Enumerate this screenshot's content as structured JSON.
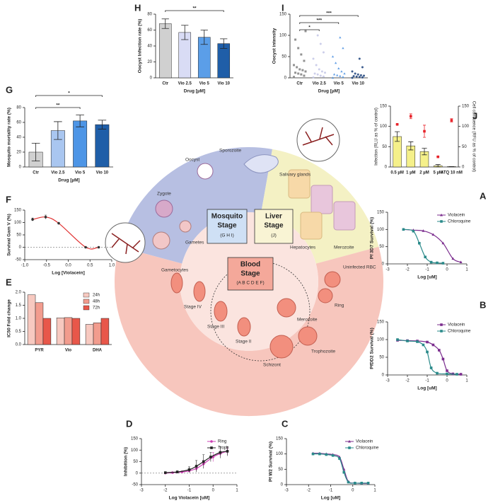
{
  "chart_data": [
    {
      "panel": "H",
      "type": "bar",
      "ylabel": "Oocyst Infection rate (%)",
      "xlabel": "Drug [µM]",
      "categories": [
        "Ctr",
        "Vio 2.5",
        "Vio 5",
        "Vio 10"
      ],
      "values": [
        68,
        57,
        51,
        43
      ],
      "errors": [
        6,
        9,
        9,
        6
      ],
      "colors": [
        "#d0d0d0",
        "#d9dcf5",
        "#5b9ee8",
        "#1f5ea8"
      ],
      "ylim": [
        0,
        80
      ],
      "yticks": [
        0,
        20,
        40,
        60,
        80
      ],
      "significance": [
        {
          "label": "**",
          "between": [
            "Ctr",
            "Vio 10"
          ]
        }
      ]
    },
    {
      "panel": "I",
      "type": "strip",
      "ylabel": "Oocyst intensity",
      "xlabel": "Drug [µM]",
      "categories": [
        "Ctr",
        "Vio 2.5",
        "Vio 5",
        "Vio 10"
      ],
      "values": [
        [
          2,
          5,
          8,
          10,
          12,
          15,
          18,
          20,
          25,
          30,
          40,
          55,
          70,
          90,
          110
        ],
        [
          1,
          3,
          5,
          8,
          10,
          12,
          15,
          20,
          30,
          45,
          60,
          80,
          100
        ],
        [
          0,
          2,
          4,
          6,
          8,
          10,
          15,
          22,
          35,
          50,
          70,
          95
        ],
        [
          0,
          1,
          2,
          3,
          4,
          5,
          6,
          8,
          10,
          15,
          25,
          45
        ]
      ],
      "colors": [
        "#7f7f7f",
        "#c3c6e6",
        "#4a8fe0",
        "#1a3f7a"
      ],
      "markers": [
        "square",
        "circle",
        "triangle",
        "circle"
      ],
      "ylim": [
        0,
        150
      ],
      "yticks": [
        0,
        50,
        100,
        150
      ],
      "significance": [
        {
          "label": "*",
          "between": [
            "Ctr",
            "Vio 2.5"
          ]
        },
        {
          "label": "***",
          "between": [
            "Ctr",
            "Vio 5"
          ]
        },
        {
          "label": "***",
          "between": [
            "Ctr",
            "Vio 10"
          ]
        }
      ]
    },
    {
      "panel": "G",
      "type": "bar",
      "ylabel": "Mosquito mortality rate (%)",
      "xlabel": "Drug [µM]",
      "categories": [
        "Ctr",
        "Vio 2.5",
        "Vio 5",
        "Vio 10"
      ],
      "values": [
        20,
        49,
        62,
        57
      ],
      "errors": [
        12,
        12,
        8,
        6
      ],
      "colors": [
        "#d0d0d0",
        "#a9c6f0",
        "#4d95e6",
        "#1f5ea8"
      ],
      "ylim": [
        0,
        80
      ],
      "yticks": [
        0,
        20,
        40,
        60,
        80
      ],
      "significance": [
        {
          "label": "**",
          "between": [
            "Ctr",
            "Vio 5"
          ]
        },
        {
          "label": "*",
          "between": [
            "Ctr",
            "Vio 10"
          ]
        }
      ]
    },
    {
      "panel": "J",
      "type": "bar",
      "ylabel": "Infection (RLU as % of control)",
      "y2label": "Cell confluence (RFU as % of control)",
      "categories": [
        "0.5 µM",
        "1 µM",
        "2 µM",
        "5 µM",
        "ATQ 10 nM"
      ],
      "series": [
        {
          "color": "#f5f08a",
          "values": [
            75,
            52,
            38,
            3,
            1
          ],
          "errors": [
            12,
            10,
            8,
            3,
            0
          ]
        },
        {
          "axis": "y2",
          "marker": "square",
          "color": "#e8242b",
          "values": [
            105,
            125,
            88,
            25,
            115
          ],
          "errors": [
            0,
            6,
            15,
            0,
            4
          ]
        }
      ],
      "ylim": [
        0,
        150
      ],
      "yticks": [
        0,
        50,
        100,
        150
      ],
      "y2lim": [
        0,
        150
      ],
      "y2ticks": [
        0,
        50,
        100,
        150
      ]
    },
    {
      "panel": "F",
      "type": "line",
      "ylabel": "Survival Gam V (%)",
      "xlabel": "Log [Violacein]",
      "series": [
        {
          "color": "#e03030",
          "marker": "circle",
          "marker_color": "#333333",
          "x": [
            -0.82,
            -0.52,
            -0.22,
            0.4,
            0.7
          ],
          "values": [
            112,
            122,
            97,
            0,
            0
          ],
          "errors": [
            6,
            8,
            0,
            0,
            0
          ]
        }
      ],
      "xlim": [
        -1,
        1
      ],
      "xticks": [
        {
          "value": -1,
          "label": "-1.0"
        },
        -0.5,
        {
          "value": 0,
          "label": "0.0"
        },
        0.5,
        {
          "value": 1,
          "label": "1.0"
        }
      ],
      "ylim": [
        -50,
        150
      ],
      "yticks": [
        -50,
        0,
        50,
        100,
        150
      ],
      "zero_line": true
    },
    {
      "panel": "E",
      "type": "bar",
      "ylabel": "IC50 Fold change",
      "categories": [
        "PYR",
        "Vio",
        "DHA"
      ],
      "series": [
        {
          "name": "24h",
          "color": "#f7c9c0",
          "values": [
            1.9,
            1.02,
            0.77
          ]
        },
        {
          "name": "48h",
          "color": "#f29c8e",
          "values": [
            1.6,
            1.03,
            0.83
          ]
        },
        {
          "name": "72h",
          "color": "#e8574a",
          "values": [
            1.0,
            1.0,
            1.0
          ]
        }
      ],
      "ylim": [
        0,
        2
      ],
      "yticks": [
        {
          "value": 0,
          "label": "0.0"
        },
        0.5,
        {
          "value": 1,
          "label": "1.0"
        },
        1.5,
        {
          "value": 2,
          "label": "2.0"
        }
      ]
    },
    {
      "panel": "A",
      "type": "line",
      "ylabel": "Pf 3D7 Survival (%)",
      "xlabel": "Log [uM]",
      "series": [
        {
          "name": "Violacein",
          "color": "#7b2d8e",
          "marker": "triangle",
          "x": [
            -2.2,
            -1.7,
            -1.2,
            -0.7,
            -0.2,
            0.3,
            0.7
          ],
          "values": [
            100,
            98,
            96,
            85,
            60,
            15,
            5
          ]
        },
        {
          "name": "Chloroquine",
          "color": "#2a8a8a",
          "marker": "square",
          "x": [
            -2.2,
            -1.7,
            -1.4,
            -1.1,
            -0.8,
            -0.5,
            -0.2
          ],
          "values": [
            100,
            95,
            60,
            20,
            5,
            3,
            2
          ]
        }
      ],
      "xlim": [
        -3,
        1
      ],
      "xticks": [
        -3,
        -2,
        -1,
        0,
        1
      ],
      "ylim": [
        0,
        150
      ],
      "yticks": [
        0,
        50,
        100,
        150
      ]
    },
    {
      "panel": "B",
      "type": "line",
      "ylabel": "PfDD2 Survival (%)",
      "xlabel": "Log [uM]",
      "series": [
        {
          "name": "Violacein",
          "color": "#7b2d8e",
          "marker": "square",
          "x": [
            -2.5,
            -2,
            -1.5,
            -1,
            -0.7,
            -0.4,
            -0.2,
            0,
            0.3,
            0.7
          ],
          "values": [
            98,
            97,
            96,
            93,
            85,
            70,
            45,
            12,
            3,
            2
          ]
        },
        {
          "name": "Chloroquine",
          "color": "#2a8a8a",
          "marker": "square",
          "x": [
            -2.5,
            -2,
            -1.5,
            -1.2,
            -1,
            -0.8,
            -0.5,
            0,
            0.5
          ],
          "values": [
            100,
            96,
            94,
            85,
            65,
            20,
            5,
            3,
            2
          ]
        }
      ],
      "xlim": [
        -3,
        1
      ],
      "xticks": [
        -3,
        -2,
        -1,
        0,
        1
      ],
      "ylim": [
        0,
        150
      ],
      "yticks": [
        0,
        50,
        100,
        150
      ]
    },
    {
      "panel": "D",
      "type": "line",
      "ylabel": "Inhibition (%)",
      "xlabel": "Log Violacein [uM]",
      "series": [
        {
          "name": "Ring",
          "color": "#cc3fb3",
          "marker": "circle",
          "x": [
            -2,
            -1.7,
            -1.3,
            -1,
            -0.7,
            -0.4,
            0,
            0.3,
            0.6
          ],
          "values": [
            0,
            2,
            5,
            10,
            20,
            40,
            70,
            85,
            95
          ],
          "errors": [
            2,
            3,
            5,
            8,
            10,
            15,
            20,
            10,
            15
          ]
        },
        {
          "name": "Troph",
          "color": "#222222",
          "marker": "square",
          "x": [
            -2,
            -1.5,
            -1,
            -0.7,
            -0.4,
            -0.1,
            0.3,
            0.6
          ],
          "values": [
            2,
            5,
            15,
            30,
            50,
            70,
            90,
            95
          ],
          "errors": [
            3,
            5,
            12,
            25,
            30,
            20,
            25,
            20
          ]
        }
      ],
      "xlim": [
        -3,
        1
      ],
      "xticks": [
        -3,
        -2,
        -1,
        0,
        1
      ],
      "ylim": [
        -50,
        150
      ],
      "yticks": [
        -50,
        0,
        50,
        100,
        150
      ],
      "zero_line": true
    },
    {
      "panel": "C",
      "type": "line",
      "ylabel": "Pf W2 Survival (%)",
      "xlabel": "Log [uM]",
      "series": [
        {
          "name": "Violacein",
          "color": "#7b2d8e",
          "marker": "triangle",
          "x": [
            -1.8,
            -1.5,
            -1.2,
            -0.9,
            -0.6,
            -0.4,
            -0.2,
            0.1,
            0.4,
            0.7
          ],
          "values": [
            102,
            102,
            100,
            98,
            90,
            50,
            10,
            5,
            4,
            4
          ]
        },
        {
          "name": "Chloroquine",
          "color": "#2a8a8a",
          "marker": "square",
          "x": [
            -1.8,
            -1.5,
            -1.2,
            -0.9,
            -0.6,
            -0.4,
            -0.2,
            0.1,
            0.4,
            0.7
          ],
          "values": [
            100,
            100,
            98,
            95,
            85,
            40,
            8,
            5,
            5,
            5
          ]
        }
      ],
      "xlim": [
        -3,
        1
      ],
      "xticks": [
        -3,
        -2,
        -1,
        0,
        1
      ],
      "ylim": [
        0,
        150
      ],
      "yticks": [
        0,
        50,
        100,
        150
      ]
    }
  ],
  "diagram": {
    "stages": [
      {
        "name": "Mosquito",
        "sub": "Stage",
        "panels": "(G H I)"
      },
      {
        "name": "Liver",
        "sub": "Stage",
        "panels": "(J)"
      },
      {
        "name": "Blood",
        "sub": "Stage",
        "panels": "(A B C D E F)"
      }
    ],
    "labels": [
      "Sporozoite",
      "Oocyst",
      "Salivary glands",
      "Zygote",
      "Gametes",
      "Hepatocytes",
      "Merozoite",
      "Uninfected RBC",
      "Ring",
      "Trophozoite",
      "Schizont",
      "Merozoite",
      "Stage II",
      "Stage III",
      "Stage IV",
      "Gametocytes"
    ]
  }
}
